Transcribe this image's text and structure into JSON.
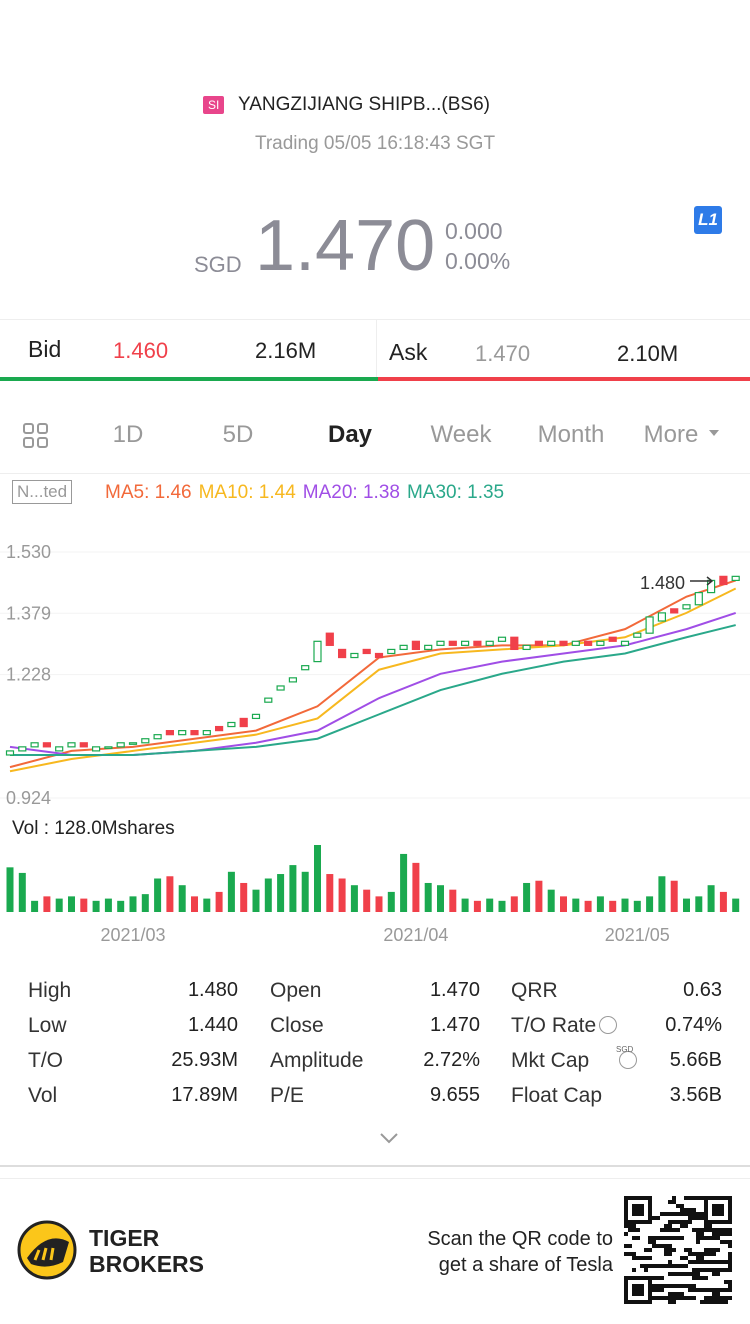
{
  "header": {
    "market_tag": "SI",
    "name": "YANGZIJIANG SHIPB...(BS6)",
    "status": "Trading 05/05 16:18:43 SGT",
    "currency": "SGD",
    "price": "1.470",
    "change": "0.000",
    "change_pct": "0.00%",
    "level_badge": "L1"
  },
  "quote": {
    "bid_label": "Bid",
    "bid_price": "1.460",
    "bid_size": "2.16M",
    "ask_label": "Ask",
    "ask_price": "1.470",
    "ask_size": "2.10M"
  },
  "tabs": [
    "1D",
    "5D",
    "Day",
    "Week",
    "Month",
    "More"
  ],
  "chart_data": {
    "type": "candlestick",
    "adjust_label": "N...ted",
    "legend": [
      {
        "text": "MA5: 1.46",
        "color": "#f2693a"
      },
      {
        "text": "MA10: 1.44",
        "color": "#f7b81f"
      },
      {
        "text": "MA20: 1.38",
        "color": "#a04ee6"
      },
      {
        "text": "MA30: 1.35",
        "color": "#2aa88a"
      }
    ],
    "ylim": [
      0.924,
      1.53
    ],
    "yticks": [
      {
        "value": 1.53,
        "label": "1.530"
      },
      {
        "value": 1.379,
        "label": "1.379"
      },
      {
        "value": 1.228,
        "label": "1.228"
      },
      {
        "value": 0.924,
        "label": "0.924"
      }
    ],
    "annotation": "1.480",
    "open": [
      1.03,
      1.04,
      1.05,
      1.06,
      1.04,
      1.05,
      1.06,
      1.04,
      1.05,
      1.05,
      1.06,
      1.06,
      1.07,
      1.09,
      1.08,
      1.09,
      1.08,
      1.1,
      1.1,
      1.12,
      1.12,
      1.16,
      1.19,
      1.21,
      1.24,
      1.26,
      1.33,
      1.29,
      1.27,
      1.29,
      1.28,
      1.28,
      1.29,
      1.31,
      1.29,
      1.3,
      1.31,
      1.3,
      1.31,
      1.3,
      1.31,
      1.32,
      1.29,
      1.31,
      1.3,
      1.31,
      1.3,
      1.31,
      1.3,
      1.32,
      1.3,
      1.32,
      1.33,
      1.36,
      1.39,
      1.39,
      1.4,
      1.43,
      1.47,
      1.46
    ],
    "close": [
      1.04,
      1.05,
      1.06,
      1.05,
      1.05,
      1.06,
      1.05,
      1.05,
      1.05,
      1.06,
      1.06,
      1.07,
      1.08,
      1.08,
      1.09,
      1.08,
      1.09,
      1.09,
      1.11,
      1.1,
      1.13,
      1.17,
      1.2,
      1.22,
      1.25,
      1.31,
      1.3,
      1.27,
      1.28,
      1.28,
      1.27,
      1.29,
      1.3,
      1.29,
      1.3,
      1.31,
      1.3,
      1.31,
      1.3,
      1.31,
      1.32,
      1.29,
      1.3,
      1.3,
      1.31,
      1.3,
      1.31,
      1.3,
      1.31,
      1.31,
      1.31,
      1.33,
      1.37,
      1.38,
      1.38,
      1.4,
      1.43,
      1.46,
      1.45,
      1.47
    ],
    "ma_x": [
      0,
      5,
      10,
      15,
      20,
      25,
      30,
      35,
      40,
      45,
      50,
      55,
      59
    ],
    "series": [
      {
        "name": "MA5",
        "color": "#f2693a",
        "values": [
          1.0,
          1.04,
          1.05,
          1.07,
          1.09,
          1.15,
          1.27,
          1.29,
          1.3,
          1.3,
          1.34,
          1.42,
          1.46
        ]
      },
      {
        "name": "MA10",
        "color": "#f7b81f",
        "values": [
          0.99,
          1.02,
          1.04,
          1.06,
          1.08,
          1.12,
          1.24,
          1.28,
          1.29,
          1.3,
          1.32,
          1.38,
          1.44
        ]
      },
      {
        "name": "MA20",
        "color": "#a04ee6",
        "values": [
          1.05,
          1.03,
          1.03,
          1.04,
          1.06,
          1.09,
          1.17,
          1.23,
          1.26,
          1.28,
          1.3,
          1.34,
          1.38
        ]
      },
      {
        "name": "MA30",
        "color": "#2aa88a",
        "values": [
          1.03,
          1.03,
          1.03,
          1.04,
          1.05,
          1.07,
          1.13,
          1.19,
          1.23,
          1.26,
          1.28,
          1.32,
          1.35
        ]
      }
    ],
    "volume_label": "Vol  : 128.0Mshares",
    "volume_ylim": [
      0,
      60
    ],
    "volume": [
      40,
      35,
      10,
      14,
      12,
      14,
      12,
      10,
      12,
      10,
      14,
      16,
      30,
      32,
      24,
      14,
      12,
      18,
      36,
      26,
      20,
      30,
      34,
      42,
      36,
      60,
      34,
      30,
      24,
      20,
      14,
      18,
      52,
      44,
      26,
      24,
      20,
      12,
      10,
      12,
      10,
      14,
      26,
      28,
      20,
      14,
      12,
      10,
      14,
      10,
      12,
      10,
      14,
      32,
      28,
      12,
      14,
      24,
      18,
      12
    ],
    "xticks": [
      {
        "value": 10,
        "label": "2021/03"
      },
      {
        "value": 33,
        "label": "2021/04"
      },
      {
        "value": 51,
        "label": "2021/05"
      }
    ],
    "up_color": "#1aa94f",
    "down_color": "#f0404a"
  },
  "stats": [
    [
      "High",
      "1.480",
      "Open",
      "1.470",
      "QRR",
      "0.63"
    ],
    [
      "Low",
      "1.440",
      "Close",
      "1.470",
      "T/O Rate",
      "0.74%"
    ],
    [
      "T/O",
      "25.93M",
      "Amplitude",
      "2.72%",
      "Mkt Cap",
      "5.66B"
    ],
    [
      "Vol",
      "17.89M",
      "P/E",
      "9.655",
      "Float Cap",
      "3.56B"
    ]
  ],
  "mkt_cap_currency": "SGD",
  "footer": {
    "brand": [
      "TIGER",
      "BROKERS"
    ],
    "promo": [
      "Scan the QR code to",
      "get a share of Tesla"
    ]
  }
}
